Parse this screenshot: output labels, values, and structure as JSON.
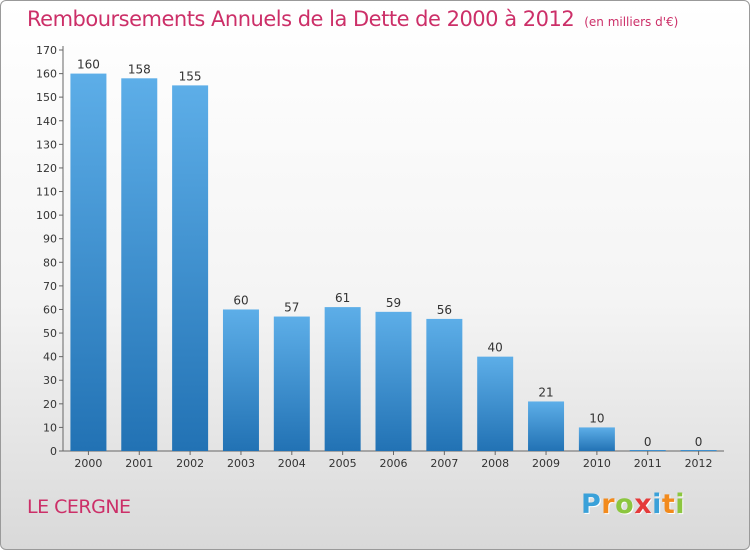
{
  "chart_data": {
    "type": "bar",
    "title": "Remboursements Annuels de la Dette de 2000 à 2012",
    "unit": "(en milliers d'€)",
    "categories": [
      "2000",
      "2001",
      "2002",
      "2003",
      "2004",
      "2005",
      "2006",
      "2007",
      "2008",
      "2009",
      "2010",
      "2011",
      "2012"
    ],
    "values": [
      160,
      158,
      155,
      60,
      57,
      61,
      59,
      56,
      40,
      21,
      10,
      0,
      0
    ],
    "data_labels": [
      "160",
      "158",
      "155",
      "60",
      "57",
      "61",
      "59",
      "56",
      "40",
      "21",
      "10",
      "0",
      "0"
    ],
    "y_ticks": [
      "0",
      "10",
      "20",
      "30",
      "40",
      "50",
      "60",
      "70",
      "80",
      "90",
      "100",
      "110",
      "120",
      "130",
      "140",
      "150",
      "160",
      "170"
    ],
    "ylim": [
      0,
      170
    ],
    "xlabel": "",
    "ylabel": "",
    "grid": false,
    "colors": {
      "bar_top": "#5daee8",
      "bar_bottom": "#2272b4",
      "title": "#cc2f68"
    }
  },
  "commune": "LE CERGNE",
  "logo": {
    "letters": [
      "P",
      "r",
      "o",
      "x",
      "i",
      "t",
      "i"
    ],
    "colors": [
      "#3aa1d9",
      "#f28a1c",
      "#8cc63f",
      "#e53a3a",
      "#3aa1d9",
      "#f28a1c",
      "#8cc63f"
    ]
  }
}
